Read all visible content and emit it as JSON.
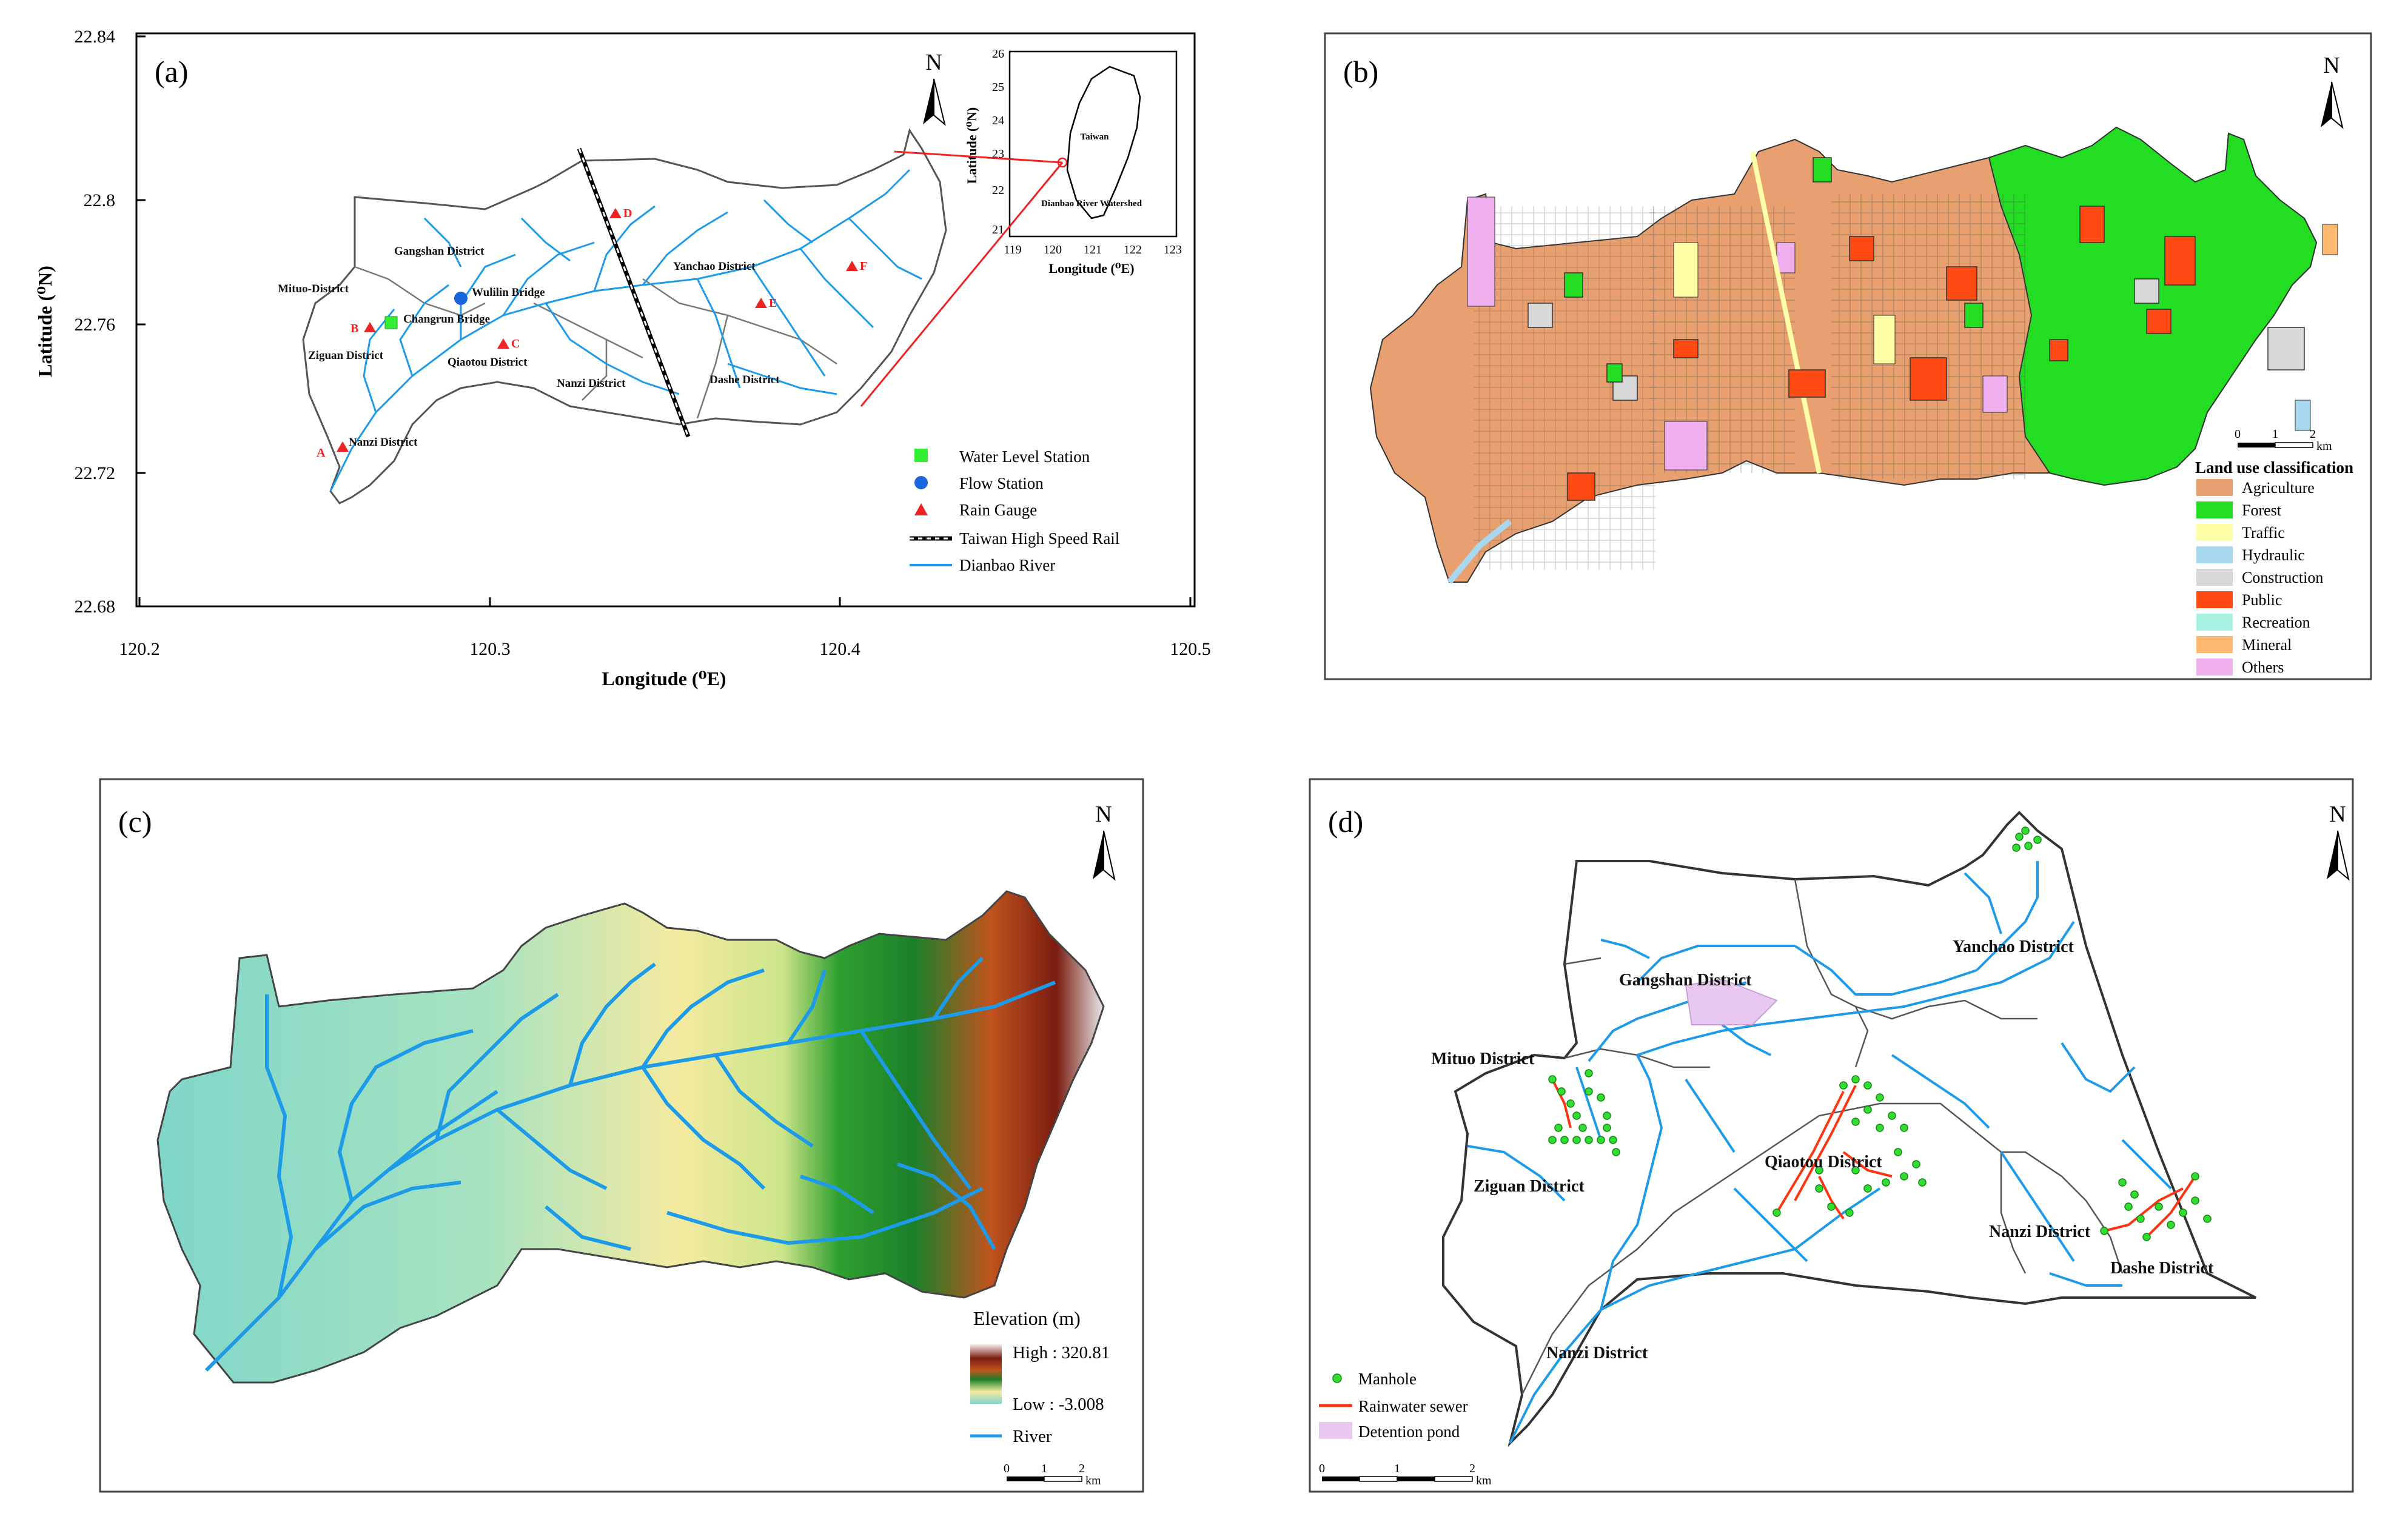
{
  "panel_a": {
    "label": "(a)",
    "north": "N",
    "xlabel": "Longitude (⁰E)",
    "ylabel": "Latitude (⁰N)",
    "x_ticks": [
      "120.2",
      "120.3",
      "120.4",
      "120.5"
    ],
    "y_ticks": [
      "22.84",
      "22.8",
      "22.76",
      "22.72",
      "22.68"
    ],
    "districts": {
      "gangshan": "Gangshan District",
      "mituo": "Mituo-District",
      "ziguan": "Ziguan District",
      "qiaotou": "Qiaotou District",
      "nanzi": "Nanzi District",
      "nanzi2": "Nanzi District",
      "yanchao": "Yanchao District",
      "dashe": "Dashe District"
    },
    "stations": {
      "wulilin": "Wulilin  Bridge",
      "changrun": "Changrun Bridge"
    },
    "gauges": [
      "A",
      "B",
      "C",
      "D",
      "E",
      "F"
    ],
    "inset": {
      "ylabel": "Latitude (⁰N)",
      "xlabel": "Longitude (⁰E)",
      "y_ticks": [
        "26",
        "25",
        "24",
        "23",
        "22",
        "21"
      ],
      "x_ticks": [
        "119",
        "120",
        "121",
        "122",
        "123"
      ],
      "taiwan": "Taiwan",
      "watershed": "Dianbao River Watershed"
    },
    "legend": [
      {
        "label": "Water Level Station"
      },
      {
        "label": "Flow Station"
      },
      {
        "label": "Rain Gauge"
      },
      {
        "label": "Taiwan High Speed Rail"
      },
      {
        "label": "Dianbao River"
      }
    ]
  },
  "panel_b": {
    "label": "(b)",
    "north": "N",
    "scale": {
      "t0": "0",
      "t1": "1",
      "t2": "2",
      "unit": "km"
    },
    "legend_title": "Land use classification",
    "classes": [
      {
        "label": "Agriculture",
        "color": "#e8a070"
      },
      {
        "label": "Forest",
        "color": "#22dd22"
      },
      {
        "label": "Traffic",
        "color": "#ffffa8"
      },
      {
        "label": "Hydraulic",
        "color": "#a8d8f0"
      },
      {
        "label": "Construction",
        "color": "#d8d8d8"
      },
      {
        "label": "Public",
        "color": "#ff4a14"
      },
      {
        "label": "Recreation",
        "color": "#a8f0e0"
      },
      {
        "label": "Mineral",
        "color": "#ffb870"
      },
      {
        "label": "Others",
        "color": "#f0b0f0"
      }
    ]
  },
  "panel_c": {
    "label": "(c)",
    "north": "N",
    "legend_title": "Elevation (m)",
    "high": "High : 320.81",
    "low": "Low : -3.008",
    "river": "River",
    "scale": {
      "t0": "0",
      "t1": "1",
      "t2": "2",
      "unit": "km"
    }
  },
  "panel_d": {
    "label": "(d)",
    "north": "N",
    "districts": {
      "yanchao": "Yanchao District",
      "gangshan": "Gangshan District",
      "mituo": "Mituo District",
      "qiaotou": "Qiaotou District",
      "ziguan": "Ziguan District",
      "nanzi": "Nanzi District",
      "nanzi2": "Nanzi District",
      "dashe": "Dashe District"
    },
    "legend": [
      {
        "label": "Manhole"
      },
      {
        "label": "Rainwater sewer"
      },
      {
        "label": "Detention pond"
      }
    ],
    "scale": {
      "t0": "0",
      "t1": "1",
      "t2": "2",
      "unit": "km"
    }
  },
  "colors": {
    "river": "#1e9be8",
    "station_green": "#33ee33",
    "station_blue": "#1a66dd",
    "gauge_red": "#ee2222",
    "sewer": "#ff3311",
    "pond": "#e6c8f0",
    "agriculture": "#e8a070",
    "forest": "#22dd22"
  }
}
